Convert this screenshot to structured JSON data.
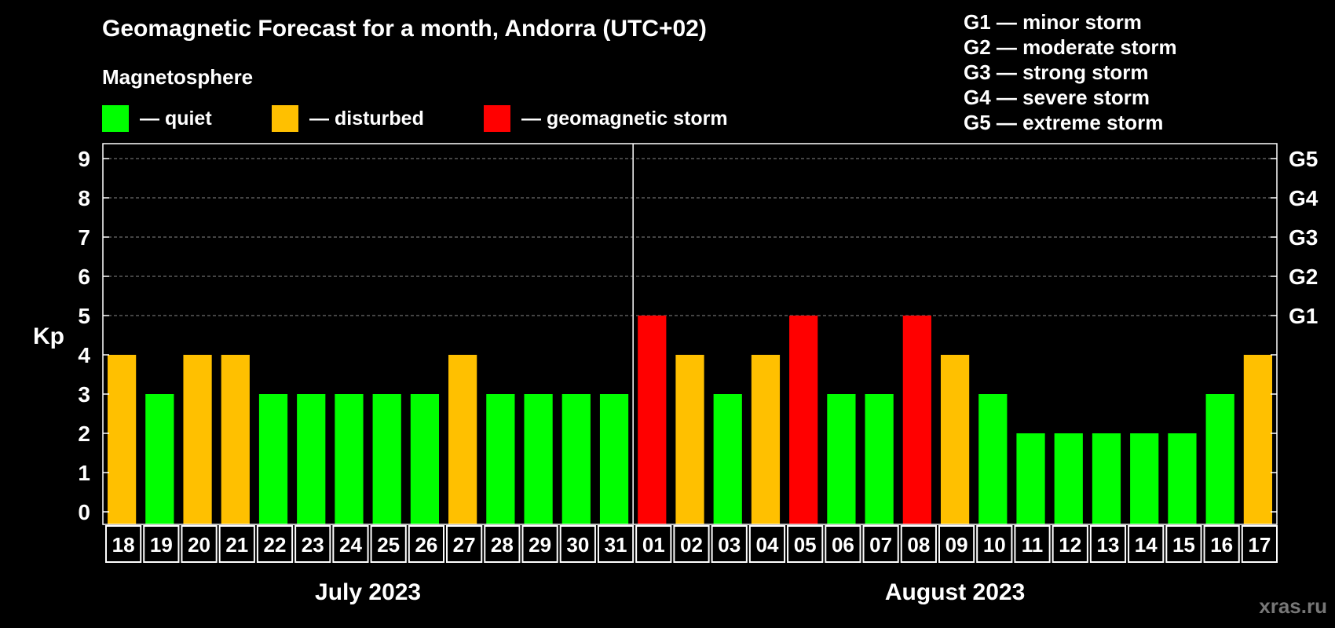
{
  "chart_data": {
    "type": "bar",
    "title": "Geomagnetic Forecast for a month, Andorra (UTC+02)",
    "subtitle": "Magnetosphere",
    "ylabel": "Kp",
    "ylim": [
      0,
      9
    ],
    "yticks": [
      "0",
      "1",
      "2",
      "3",
      "4",
      "5",
      "6",
      "7",
      "8",
      "9"
    ],
    "right_axis_labels": [
      {
        "kp": 5,
        "label": "G1"
      },
      {
        "kp": 6,
        "label": "G2"
      },
      {
        "kp": 7,
        "label": "G3"
      },
      {
        "kp": 8,
        "label": "G4"
      },
      {
        "kp": 9,
        "label": "G5"
      }
    ],
    "categories": [
      "18",
      "19",
      "20",
      "21",
      "22",
      "23",
      "24",
      "25",
      "26",
      "27",
      "28",
      "29",
      "30",
      "31",
      "01",
      "02",
      "03",
      "04",
      "05",
      "06",
      "07",
      "08",
      "09",
      "10",
      "11",
      "12",
      "13",
      "14",
      "15",
      "16",
      "17"
    ],
    "values": [
      4,
      3,
      4,
      4,
      3,
      3,
      3,
      3,
      3,
      4,
      3,
      3,
      3,
      3,
      5,
      4,
      3,
      4,
      5,
      3,
      3,
      5,
      4,
      3,
      2,
      2,
      2,
      2,
      2,
      3,
      4
    ],
    "months": [
      {
        "label": "July 2023",
        "days": 14
      },
      {
        "label": "August 2023",
        "days": 17
      }
    ],
    "grid": true,
    "legend_placement": "top",
    "colors": {
      "quiet": "#00ff00",
      "disturbed": "#ffc000",
      "storm": "#ff0000"
    }
  },
  "legend": [
    {
      "label": "— quiet",
      "color": "#00ff00"
    },
    {
      "label": "— disturbed",
      "color": "#ffc000"
    },
    {
      "label": "— geomagnetic storm",
      "color": "#ff0000"
    }
  ],
  "storm_scale": [
    "G1 — minor storm",
    "G2 — moderate storm",
    "G3 — strong storm",
    "G4 — severe storm",
    "G5 — extreme storm"
  ],
  "watermark": "xras.ru"
}
